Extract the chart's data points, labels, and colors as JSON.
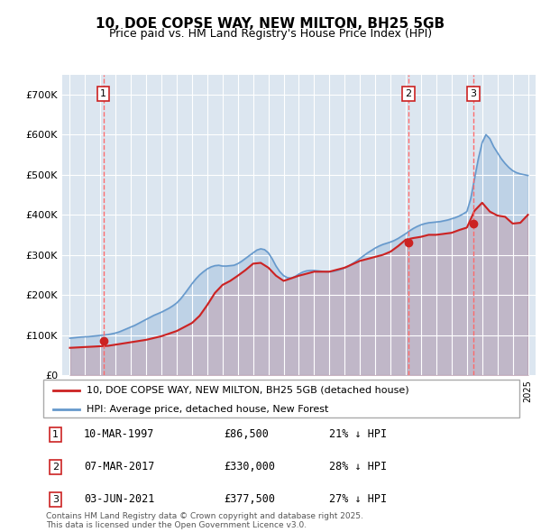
{
  "title": "10, DOE COPSE WAY, NEW MILTON, BH25 5GB",
  "subtitle": "Price paid vs. HM Land Registry's House Price Index (HPI)",
  "plot_bg_color": "#dce6f0",
  "ylim": [
    0,
    750000
  ],
  "yticks": [
    0,
    100000,
    200000,
    300000,
    400000,
    500000,
    600000,
    700000
  ],
  "ytick_labels": [
    "£0",
    "£100K",
    "£200K",
    "£300K",
    "£400K",
    "£500K",
    "£600K",
    "£700K"
  ],
  "xlim_start": 1994.5,
  "xlim_end": 2025.5,
  "sale_dates": [
    1997.19,
    2017.18,
    2021.42
  ],
  "sale_prices": [
    86500,
    330000,
    377500
  ],
  "sale_labels": [
    "1",
    "2",
    "3"
  ],
  "hpi_line_color": "#6699cc",
  "price_line_color": "#cc2222",
  "sale_marker_color": "#cc2222",
  "dashed_line_color": "#ff6666",
  "legend_label_price": "10, DOE COPSE WAY, NEW MILTON, BH25 5GB (detached house)",
  "legend_label_hpi": "HPI: Average price, detached house, New Forest",
  "table_rows": [
    {
      "label": "1",
      "date": "10-MAR-1997",
      "price": "£86,500",
      "pct": "21% ↓ HPI"
    },
    {
      "label": "2",
      "date": "07-MAR-2017",
      "price": "£330,000",
      "pct": "28% ↓ HPI"
    },
    {
      "label": "3",
      "date": "03-JUN-2021",
      "price": "£377,500",
      "pct": "27% ↓ HPI"
    }
  ],
  "footnote": "Contains HM Land Registry data © Crown copyright and database right 2025.\nThis data is licensed under the Open Government Licence v3.0.",
  "hpi_years": [
    1995,
    1995.25,
    1995.5,
    1995.75,
    1996,
    1996.25,
    1996.5,
    1996.75,
    1997,
    1997.25,
    1997.5,
    1997.75,
    1998,
    1998.25,
    1998.5,
    1998.75,
    1999,
    1999.25,
    1999.5,
    1999.75,
    2000,
    2000.25,
    2000.5,
    2000.75,
    2001,
    2001.25,
    2001.5,
    2001.75,
    2002,
    2002.25,
    2002.5,
    2002.75,
    2003,
    2003.25,
    2003.5,
    2003.75,
    2004,
    2004.25,
    2004.5,
    2004.75,
    2005,
    2005.25,
    2005.5,
    2005.75,
    2006,
    2006.25,
    2006.5,
    2006.75,
    2007,
    2007.25,
    2007.5,
    2007.75,
    2008,
    2008.25,
    2008.5,
    2008.75,
    2009,
    2009.25,
    2009.5,
    2009.75,
    2010,
    2010.25,
    2010.5,
    2010.75,
    2011,
    2011.25,
    2011.5,
    2011.75,
    2012,
    2012.25,
    2012.5,
    2012.75,
    2013,
    2013.25,
    2013.5,
    2013.75,
    2014,
    2014.25,
    2014.5,
    2014.75,
    2015,
    2015.25,
    2015.5,
    2015.75,
    2016,
    2016.25,
    2016.5,
    2016.75,
    2017,
    2017.25,
    2017.5,
    2017.75,
    2018,
    2018.25,
    2018.5,
    2018.75,
    2019,
    2019.25,
    2019.5,
    2019.75,
    2020,
    2020.25,
    2020.5,
    2020.75,
    2021,
    2021.25,
    2021.5,
    2021.75,
    2022,
    2022.25,
    2022.5,
    2022.75,
    2023,
    2023.25,
    2023.5,
    2023.75,
    2024,
    2024.25,
    2024.5,
    2024.75,
    2025
  ],
  "hpi_values": [
    92000,
    93000,
    94000,
    95000,
    95500,
    96000,
    97000,
    98000,
    99000,
    100000,
    101000,
    103000,
    105000,
    108000,
    112000,
    116000,
    120000,
    124000,
    129000,
    134000,
    139000,
    144000,
    149000,
    153000,
    157000,
    162000,
    167000,
    173000,
    180000,
    190000,
    202000,
    215000,
    228000,
    240000,
    250000,
    258000,
    265000,
    270000,
    273000,
    274000,
    272000,
    272000,
    273000,
    274000,
    278000,
    284000,
    291000,
    298000,
    305000,
    312000,
    315000,
    313000,
    305000,
    290000,
    272000,
    258000,
    248000,
    243000,
    242000,
    246000,
    252000,
    257000,
    260000,
    261000,
    261000,
    260000,
    259000,
    258000,
    258000,
    259000,
    261000,
    264000,
    268000,
    272000,
    278000,
    284000,
    291000,
    298000,
    305000,
    311000,
    317000,
    322000,
    326000,
    329000,
    332000,
    336000,
    341000,
    347000,
    353000,
    360000,
    366000,
    371000,
    375000,
    378000,
    380000,
    381000,
    382000,
    383000,
    385000,
    387000,
    390000,
    393000,
    397000,
    402000,
    408000,
    440000,
    490000,
    540000,
    580000,
    600000,
    590000,
    570000,
    555000,
    540000,
    528000,
    518000,
    510000,
    505000,
    502000,
    500000,
    498000
  ],
  "price_years": [
    1995.0,
    1995.5,
    1996.0,
    1996.5,
    1997.0,
    1997.5,
    1998.0,
    1999.0,
    2000.0,
    2001.0,
    2002.0,
    2003.0,
    2003.5,
    2004.0,
    2004.5,
    2005.0,
    2005.5,
    2006.0,
    2006.5,
    2007.0,
    2007.5,
    2008.0,
    2008.5,
    2009.0,
    2010.0,
    2011.0,
    2012.0,
    2013.0,
    2014.0,
    2015.0,
    2015.5,
    2016.0,
    2016.5,
    2017.0,
    2017.5,
    2018.0,
    2018.5,
    2019.0,
    2020.0,
    2020.5,
    2021.0,
    2021.5,
    2022.0,
    2022.5,
    2023.0,
    2023.5,
    2024.0,
    2024.5,
    2025.0
  ],
  "price_values": [
    68000,
    69000,
    70000,
    71000,
    72000,
    73000,
    76000,
    82000,
    88000,
    97000,
    110000,
    130000,
    148000,
    175000,
    205000,
    225000,
    235000,
    248000,
    262000,
    278000,
    280000,
    268000,
    248000,
    235000,
    248000,
    258000,
    258000,
    268000,
    285000,
    295000,
    300000,
    308000,
    322000,
    338000,
    342000,
    345000,
    350000,
    350000,
    355000,
    362000,
    368000,
    410000,
    430000,
    408000,
    398000,
    395000,
    378000,
    380000,
    400000
  ]
}
